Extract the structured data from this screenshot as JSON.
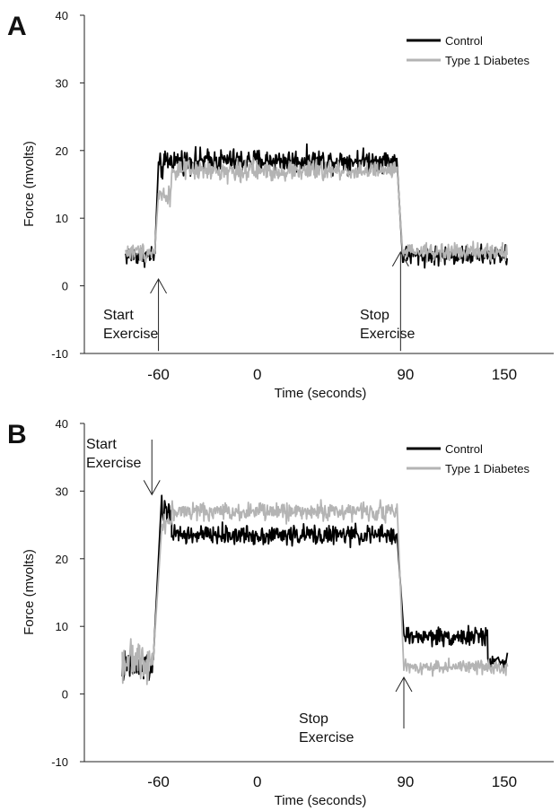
{
  "figure": {
    "background": "#ffffff",
    "colors": {
      "control": "#000000",
      "diabetes": "#b4b4b4",
      "axis": "#222222"
    }
  },
  "chart_data": [
    {
      "panel": "A",
      "type": "line",
      "xlabel": "Time (seconds)",
      "ylabel": "Force (mvolts)",
      "xticks": [
        -60,
        0,
        90,
        150
      ],
      "yticks": [
        -10,
        0,
        10,
        20,
        30,
        40
      ],
      "xlim": [
        -105,
        180
      ],
      "ylim": [
        -10,
        40
      ],
      "legend": {
        "position": "top-right",
        "entries": [
          "Control",
          "Type 1 Diabetes"
        ]
      },
      "series": [
        {
          "name": "Control",
          "color": "#000000",
          "segments": [
            {
              "x_start": -80,
              "x_end": -62,
              "mean": 4.5,
              "noise": 1.6
            },
            {
              "x_start": -60,
              "x_end": -56,
              "mean": 17.5,
              "noise": 2.0
            },
            {
              "x_start": -56,
              "x_end": 85,
              "mean": 18.5,
              "noise": 1.8
            },
            {
              "x_start": 88,
              "x_end": 152,
              "mean": 4.5,
              "noise": 1.5
            }
          ]
        },
        {
          "name": "Type 1 Diabetes",
          "color": "#b4b4b4",
          "segments": [
            {
              "x_start": -80,
              "x_end": -62,
              "mean": 5.0,
              "noise": 1.5
            },
            {
              "x_start": -60,
              "x_end": -52,
              "mean": 13.5,
              "noise": 1.5
            },
            {
              "x_start": -52,
              "x_end": 85,
              "mean": 17.0,
              "noise": 1.6
            },
            {
              "x_start": 88,
              "x_end": 152,
              "mean": 5.0,
              "noise": 1.3
            }
          ]
        }
      ],
      "annotations": [
        {
          "lines": [
            "Start",
            "Exercise"
          ],
          "x": -60,
          "y": -3,
          "arrow_to_y": 1
        },
        {
          "lines": [
            "Stop",
            "Exercise"
          ],
          "x": 87,
          "y": -3,
          "arrow_to_y": 5
        }
      ]
    },
    {
      "panel": "B",
      "type": "line",
      "xlabel": "Time (seconds)",
      "ylabel": "Force (mvolts)",
      "xticks": [
        -60,
        0,
        90,
        150
      ],
      "yticks": [
        -10,
        0,
        10,
        20,
        30,
        40
      ],
      "xlim": [
        -105,
        180
      ],
      "ylim": [
        -10,
        40
      ],
      "legend": {
        "position": "top-right",
        "entries": [
          "Control",
          "Type 1 Diabetes"
        ]
      },
      "series": [
        {
          "name": "Control",
          "color": "#000000",
          "segments": [
            {
              "x_start": -82,
              "x_end": -63,
              "mean": 4.0,
              "noise": 2.6
            },
            {
              "x_start": -58,
              "x_end": -52,
              "mean": 27.0,
              "noise": 2.0
            },
            {
              "x_start": -52,
              "x_end": 85,
              "mean": 23.5,
              "noise": 1.5
            },
            {
              "x_start": 89,
              "x_end": 140,
              "mean": 8.5,
              "noise": 1.4
            },
            {
              "x_start": 140,
              "x_end": 152,
              "mean": 5.0,
              "noise": 1.0
            }
          ]
        },
        {
          "name": "Type 1 Diabetes",
          "color": "#b4b4b4",
          "segments": [
            {
              "x_start": -82,
              "x_end": -63,
              "mean": 5.0,
              "noise": 2.8
            },
            {
              "x_start": -58,
              "x_end": -52,
              "mean": 25.5,
              "noise": 1.5
            },
            {
              "x_start": -52,
              "x_end": 85,
              "mean": 27.0,
              "noise": 1.4
            },
            {
              "x_start": 89,
              "x_end": 152,
              "mean": 4.0,
              "noise": 1.1
            }
          ]
        }
      ],
      "annotations": [
        {
          "lines": [
            "Start",
            "Exercise"
          ],
          "x": -64,
          "y": 30.5,
          "arrow_to_y": 30
        },
        {
          "lines": [
            "Stop",
            "Exercise"
          ],
          "x": 89,
          "y": -3,
          "arrow_to_y": 3
        }
      ]
    }
  ]
}
